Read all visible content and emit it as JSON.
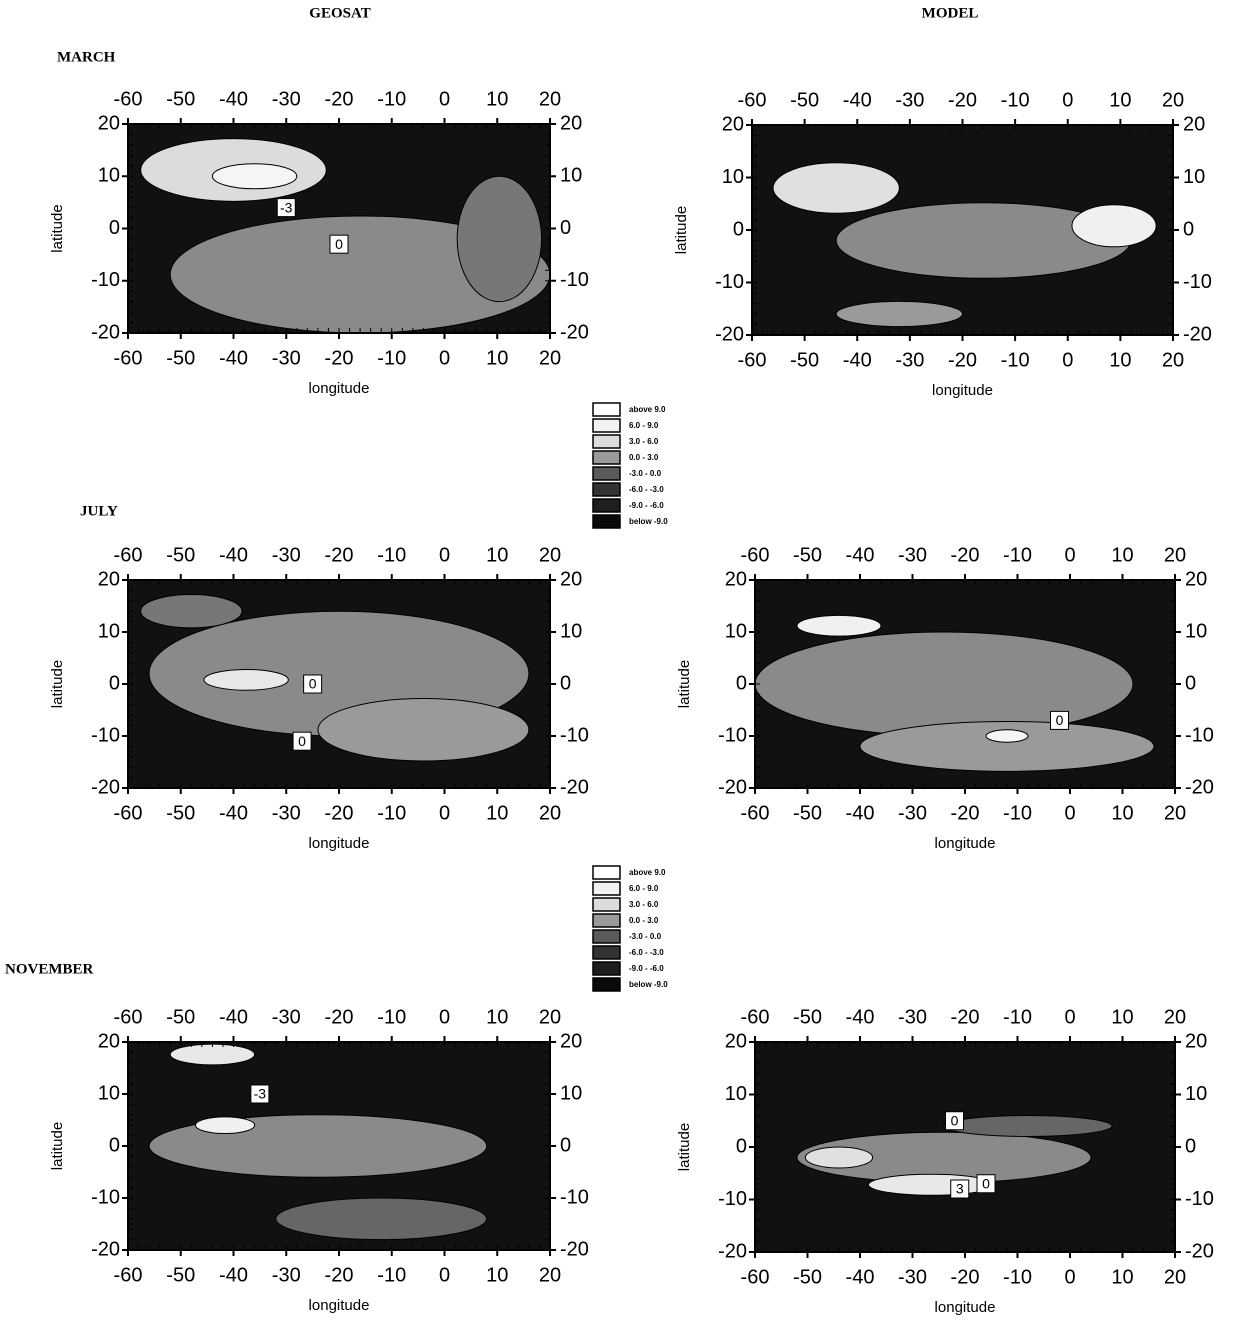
{
  "column_titles": [
    "GEOSAT",
    "MODEL"
  ],
  "row_titles": [
    "MARCH",
    "JULY",
    "NOVEMBER"
  ],
  "chart_data": [
    {
      "type": "contour",
      "xlabel": "longitude",
      "ylabel": "latitude",
      "xlim": [
        -60,
        20
      ],
      "ylim": [
        -20,
        20
      ],
      "xticks": [
        -60,
        -50,
        -40,
        -30,
        -20,
        -10,
        0,
        10,
        20
      ],
      "yticks": [
        -20,
        -10,
        0,
        10,
        20
      ],
      "annotations": [
        {
          "text": "-3",
          "x": -30,
          "y": 4
        },
        {
          "text": "0",
          "x": -20,
          "y": -3
        }
      ]
    },
    {
      "type": "contour",
      "xlabel": "longitude",
      "ylabel": "latitude",
      "xlim": [
        -60,
        20
      ],
      "ylim": [
        -20,
        20
      ],
      "xticks": [
        -60,
        -50,
        -40,
        -30,
        -20,
        -10,
        0,
        10,
        20
      ],
      "yticks": [
        -20,
        -10,
        0,
        10,
        20
      ],
      "annotations": []
    },
    {
      "type": "contour",
      "xlabel": "longitude",
      "ylabel": "latitude",
      "xlim": [
        -60,
        20
      ],
      "ylim": [
        -20,
        20
      ],
      "xticks": [
        -60,
        -50,
        -40,
        -30,
        -20,
        -10,
        0,
        10,
        20
      ],
      "yticks": [
        -20,
        -10,
        0,
        10,
        20
      ],
      "annotations": [
        {
          "text": "0",
          "x": -25,
          "y": 0
        },
        {
          "text": "0",
          "x": -27,
          "y": -11
        }
      ]
    },
    {
      "type": "contour",
      "xlabel": "longitude",
      "ylabel": "latitude",
      "xlim": [
        -60,
        20
      ],
      "ylim": [
        -20,
        20
      ],
      "xticks": [
        -60,
        -50,
        -40,
        -30,
        -20,
        -10,
        0,
        10,
        20
      ],
      "yticks": [
        -20,
        -10,
        0,
        10,
        20
      ],
      "annotations": [
        {
          "text": "0",
          "x": -2,
          "y": -7
        }
      ]
    },
    {
      "type": "contour",
      "xlabel": "longitude",
      "ylabel": "latitude",
      "xlim": [
        -60,
        20
      ],
      "ylim": [
        -20,
        20
      ],
      "xticks": [
        -60,
        -50,
        -40,
        -30,
        -20,
        -10,
        0,
        10,
        20
      ],
      "yticks": [
        -20,
        -10,
        0,
        10,
        20
      ],
      "annotations": [
        {
          "text": "-3",
          "x": -35,
          "y": 10
        }
      ]
    },
    {
      "type": "contour",
      "xlabel": "longitude",
      "ylabel": "latitude",
      "xlim": [
        -60,
        20
      ],
      "ylim": [
        -20,
        20
      ],
      "xticks": [
        -60,
        -50,
        -40,
        -30,
        -20,
        -10,
        0,
        10,
        20
      ],
      "yticks": [
        -20,
        -10,
        0,
        10,
        20
      ],
      "annotations": [
        {
          "text": "0",
          "x": -22,
          "y": 5
        },
        {
          "text": "0",
          "x": -16,
          "y": -7
        },
        {
          "text": "3",
          "x": -21,
          "y": -8
        }
      ]
    }
  ],
  "legends": [
    {
      "entries": [
        {
          "label": "above 9.0",
          "color": "#ffffff"
        },
        {
          "label": "6.0 - 9.0",
          "color": "#f2f2f2"
        },
        {
          "label": "3.0 - 6.0",
          "color": "#dcdcdc"
        },
        {
          "label": "0.0 - 3.0",
          "color": "#9a9a9a"
        },
        {
          "label": "-3.0 - 0.0",
          "color": "#5a5a5a"
        },
        {
          "label": "-6.0 - -3.0",
          "color": "#333333"
        },
        {
          "label": "-9.0 - -6.0",
          "color": "#1e1e1e"
        },
        {
          "label": "below -9.0",
          "color": "#0a0a0a"
        }
      ]
    },
    {
      "entries": [
        {
          "label": "above 9.0",
          "color": "#ffffff"
        },
        {
          "label": "6.0 - 9.0",
          "color": "#f2f2f2"
        },
        {
          "label": "3.0 - 6.0",
          "color": "#dcdcdc"
        },
        {
          "label": "0.0 - 3.0",
          "color": "#9a9a9a"
        },
        {
          "label": "-3.0 - 0.0",
          "color": "#5a5a5a"
        },
        {
          "label": "-6.0 - -3.0",
          "color": "#333333"
        },
        {
          "label": "-9.0 - -6.0",
          "color": "#1e1e1e"
        },
        {
          "label": "below -9.0",
          "color": "#0a0a0a"
        }
      ]
    }
  ]
}
